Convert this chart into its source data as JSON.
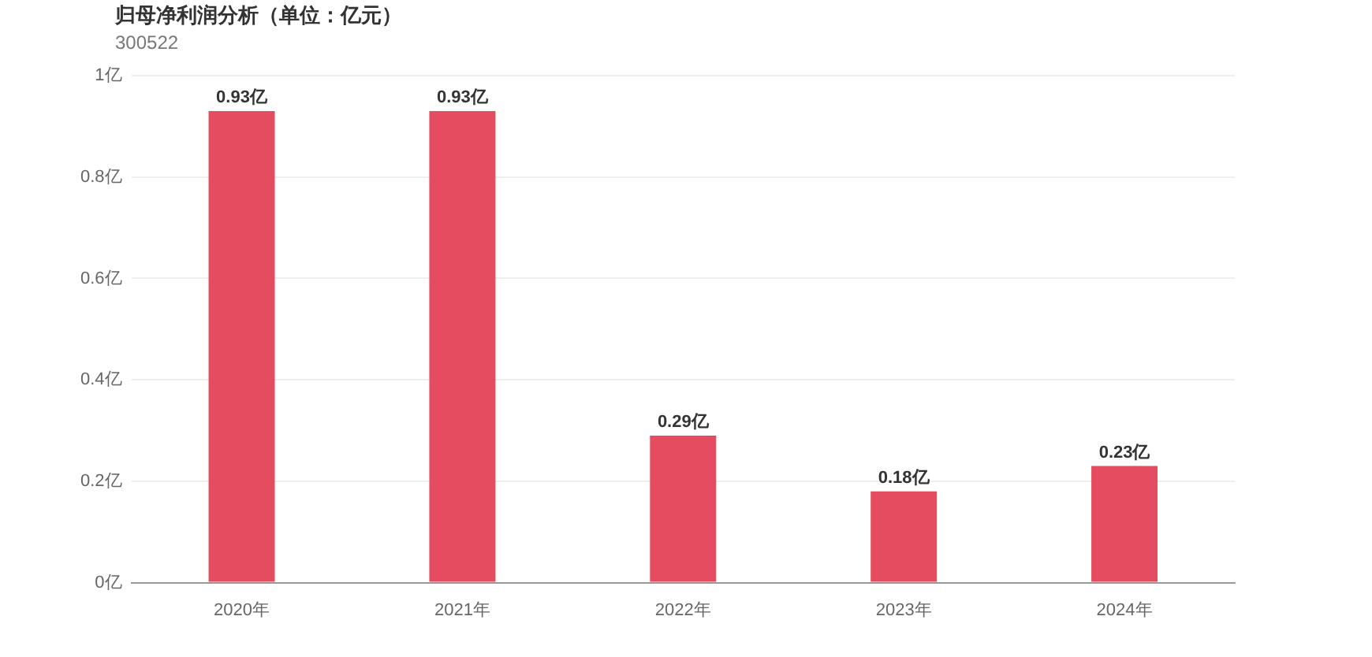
{
  "chart_data": {
    "type": "bar",
    "title": "归母净利润分析（单位：亿元）",
    "subtitle": "300522",
    "categories": [
      "2020年",
      "2021年",
      "2022年",
      "2023年",
      "2024年"
    ],
    "values": [
      0.93,
      0.93,
      0.29,
      0.18,
      0.23
    ],
    "value_labels": [
      "0.93亿",
      "0.93亿",
      "0.29亿",
      "0.18亿",
      "0.23亿"
    ],
    "color": "#e64c60",
    "ylim": [
      0,
      1
    ],
    "yticks": [
      {
        "value": 0,
        "label": "0亿"
      },
      {
        "value": 0.2,
        "label": "0.2亿"
      },
      {
        "value": 0.4,
        "label": "0.4亿"
      },
      {
        "value": 0.6,
        "label": "0.6亿"
      },
      {
        "value": 0.8,
        "label": "0.8亿"
      },
      {
        "value": 1,
        "label": "1亿"
      }
    ],
    "grid": "y",
    "legend": false
  }
}
